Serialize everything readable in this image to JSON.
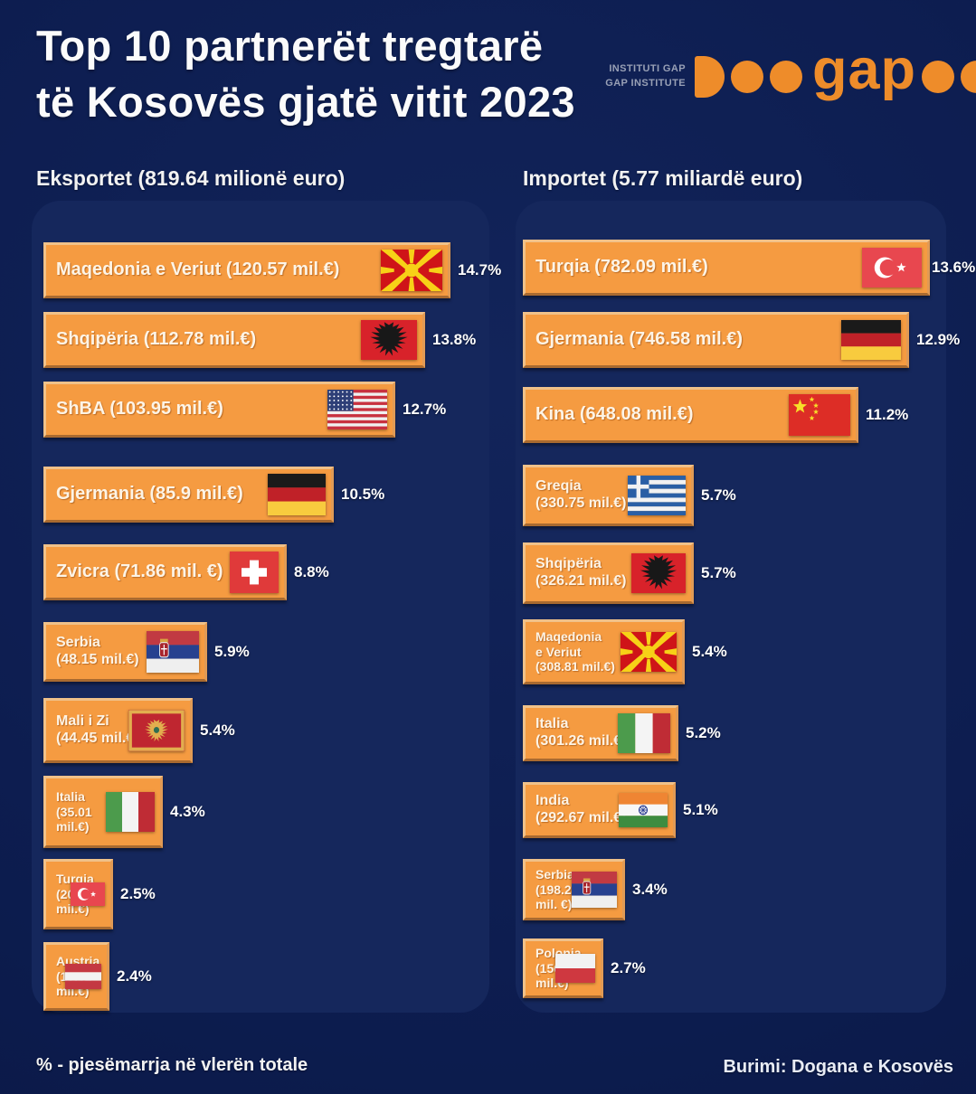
{
  "title": {
    "line1": "Top 10 partnerët tregtarë",
    "line2": "të Kosovës gjatë vitit 2023"
  },
  "logo": {
    "caption_line1": "INSTITUTI GAP",
    "caption_line2": "GAP INSTITUTE",
    "wordmark": "gap"
  },
  "footer": {
    "left": "% - pjesëmarrja në vlerën totale",
    "right": "Burimi: Dogana e Kosovës"
  },
  "colors": {
    "background": "#0d1d50",
    "panel": "#15275c",
    "bar": "#f59b41",
    "bar_border": "#f0c189",
    "logo_orange": "#ee8c2a",
    "text": "#ffffff"
  },
  "chart_data": [
    {
      "type": "bar",
      "title": "Eksportet (819.64 milionë euro)",
      "total_label": "819.64 milionë euro",
      "unit": "% e vlerës totale",
      "items": [
        {
          "country": "Maqedonia e Veriut",
          "value_mil_eur": 120.57,
          "percent": 14.7,
          "flag": "mk",
          "label_lines": [
            "Maqedonia e Veriut (120.57 mil.€)"
          ]
        },
        {
          "country": "Shqipëria",
          "value_mil_eur": 112.78,
          "percent": 13.8,
          "flag": "al",
          "label_lines": [
            "Shqipëria (112.78 mil.€)"
          ]
        },
        {
          "country": "ShBA",
          "value_mil_eur": 103.95,
          "percent": 12.7,
          "flag": "us",
          "label_lines": [
            "ShBA (103.95 mil.€)"
          ]
        },
        {
          "country": "Gjermania",
          "value_mil_eur": 85.9,
          "percent": 10.5,
          "flag": "de",
          "label_lines": [
            "Gjermania (85.9 mil.€)"
          ]
        },
        {
          "country": "Zvicra",
          "value_mil_eur": 71.86,
          "percent": 8.8,
          "flag": "ch",
          "label_lines": [
            "Zvicra (71.86 mil. €)"
          ]
        },
        {
          "country": "Serbia",
          "value_mil_eur": 48.15,
          "percent": 5.9,
          "flag": "rs",
          "label_lines": [
            "Serbia",
            "(48.15 mil.€)"
          ]
        },
        {
          "country": "Mali i Zi",
          "value_mil_eur": 44.45,
          "percent": 5.4,
          "flag": "me",
          "label_lines": [
            "Mali i Zi",
            "(44.45 mil.€)"
          ]
        },
        {
          "country": "Italia",
          "value_mil_eur": 35.01,
          "percent": 4.3,
          "flag": "it",
          "label_lines": [
            "Italia",
            "(35.01",
            "mil.€)"
          ]
        },
        {
          "country": "Turqia",
          "value_mil_eur": 20.24,
          "percent": 2.5,
          "flag": "tr",
          "label_lines": [
            "Turqia",
            "(20.24",
            "mil.€)"
          ]
        },
        {
          "country": "Austria",
          "value_mil_eur": 19.62,
          "percent": 2.4,
          "flag": "at",
          "label_lines": [
            "Austria",
            "(19.62",
            "mil.€)"
          ]
        }
      ]
    },
    {
      "type": "bar",
      "title": "Importet (5.77 miliardë euro)",
      "total_label": "5.77 miliardë euro",
      "unit": "% e vlerës totale",
      "items": [
        {
          "country": "Turqia",
          "value_mil_eur": 782.09,
          "percent": 13.6,
          "flag": "tr",
          "label_lines": [
            "Turqia (782.09 mil.€)"
          ]
        },
        {
          "country": "Gjermania",
          "value_mil_eur": 746.58,
          "percent": 12.9,
          "flag": "de",
          "label_lines": [
            "Gjermania (746.58 mil.€)"
          ]
        },
        {
          "country": "Kina",
          "value_mil_eur": 648.08,
          "percent": 11.2,
          "flag": "cn",
          "label_lines": [
            "Kina (648.08 mil.€)"
          ]
        },
        {
          "country": "Greqia",
          "value_mil_eur": 330.75,
          "percent": 5.7,
          "flag": "gr",
          "label_lines": [
            "Greqia",
            "(330.75 mil.€)"
          ]
        },
        {
          "country": "Shqipëria",
          "value_mil_eur": 326.21,
          "percent": 5.7,
          "flag": "al",
          "label_lines": [
            "Shqipëria",
            "(326.21 mil.€)"
          ]
        },
        {
          "country": "Maqedonia e Veriut",
          "value_mil_eur": 308.81,
          "percent": 5.4,
          "flag": "mk",
          "label_lines": [
            "Maqedonia",
            "e Veriut",
            "(308.81 mil.€)"
          ]
        },
        {
          "country": "Italia",
          "value_mil_eur": 301.26,
          "percent": 5.2,
          "flag": "it",
          "label_lines": [
            "Italia",
            "(301.26 mil.€)"
          ]
        },
        {
          "country": "India",
          "value_mil_eur": 292.67,
          "percent": 5.1,
          "flag": "in",
          "label_lines": [
            "India",
            "(292.67 mil.€)"
          ]
        },
        {
          "country": "Serbia",
          "value_mil_eur": 198.24,
          "percent": 3.4,
          "flag": "rs",
          "label_lines": [
            "Serbia",
            "(198.24",
            "mil. €)"
          ]
        },
        {
          "country": "Polonia",
          "value_mil_eur": 156.16,
          "percent": 2.7,
          "flag": "pl",
          "label_lines": [
            "Polonia",
            "(156.16",
            "mil.€)"
          ]
        }
      ]
    }
  ]
}
